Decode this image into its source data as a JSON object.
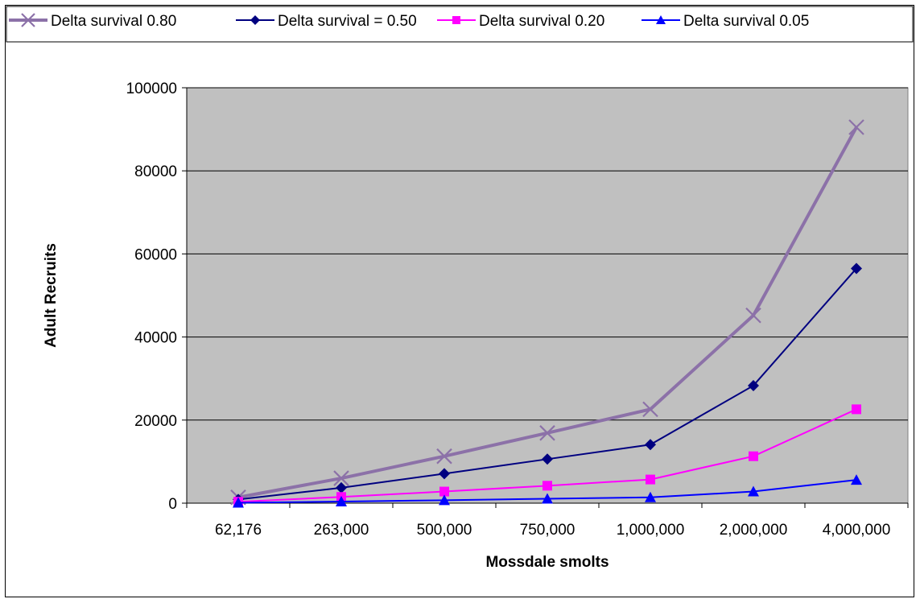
{
  "chart_data": {
    "type": "line",
    "title": "",
    "xlabel": "Mossdale smolts",
    "ylabel": "Adult Recruits",
    "categories": [
      "62,176",
      "263,000",
      "500,000",
      "750,000",
      "1,000,000",
      "2,000,000",
      "4,000,000"
    ],
    "ylim": [
      0,
      100000
    ],
    "yticks": [
      "0",
      "20000",
      "40000",
      "60000",
      "80000",
      "100000"
    ],
    "grid": true,
    "legend_position": "top",
    "plot_background": "#c0c0c0",
    "series": [
      {
        "name": "Delta survival 0.80",
        "marker": "x",
        "color": "#8c71a8",
        "values": [
          1400,
          6000,
          11300,
          16900,
          22600,
          45200,
          90500
        ]
      },
      {
        "name": "Delta survival = 0.50",
        "marker": "diamond",
        "color": "#000080",
        "values": [
          900,
          3700,
          7100,
          10600,
          14100,
          28300,
          56500
        ]
      },
      {
        "name": "Delta survival 0.20",
        "marker": "square",
        "color": "#ff00ff",
        "values": [
          350,
          1500,
          2800,
          4200,
          5700,
          11300,
          22600
        ]
      },
      {
        "name": "Delta survival 0.05",
        "marker": "triangle",
        "color": "#0000ff",
        "values": [
          90,
          380,
          710,
          1060,
          1400,
          2800,
          5600
        ]
      }
    ]
  }
}
